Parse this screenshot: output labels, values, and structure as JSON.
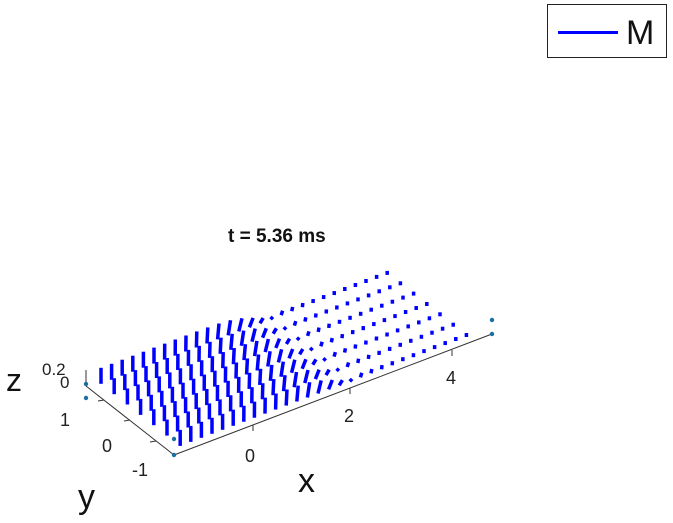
{
  "legend": {
    "label": "M",
    "color": "#0000ff"
  },
  "chart_data": {
    "type": "quiver3d",
    "title": "t = 5.36 ms",
    "xlabel": "x",
    "ylabel": "y",
    "zlabel": "z",
    "x_ticks": [
      "0",
      "2",
      "4"
    ],
    "y_ticks": [
      "1",
      "0",
      "-1"
    ],
    "z_ticks": [
      "0.2",
      "0"
    ],
    "xlim": [
      -1,
      5
    ],
    "ylim": [
      -1.2,
      1.2
    ],
    "zlim": [
      0,
      0.2
    ],
    "x_start": -0.8,
    "x_step": 0.2,
    "x_count": 28,
    "y_values": [
      -0.9,
      -0.6,
      -0.3,
      0.0,
      0.3,
      0.6,
      0.9
    ],
    "arrow_length": 0.2,
    "domain_wall_center_x": 2.0,
    "domain_wall_width": 0.6,
    "series": [
      {
        "name": "M",
        "color": "#0000ff"
      }
    ]
  }
}
